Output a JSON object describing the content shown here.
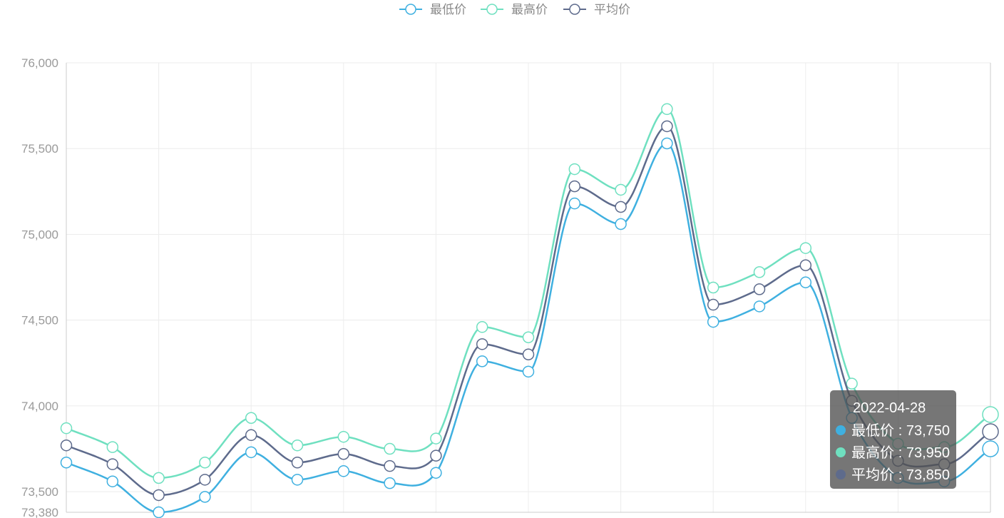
{
  "chart_data": {
    "type": "line",
    "smooth": true,
    "grid": true,
    "legend_position": "top-center",
    "y_ticks": [
      "76,000",
      "75,500",
      "75,000",
      "74,500",
      "74,000",
      "73,500",
      "73,380"
    ],
    "ylim": [
      73380,
      76000
    ],
    "x_count": 21,
    "series": [
      {
        "name": "最低价",
        "color": "#3fb0e0",
        "values": [
          73670,
          73560,
          73380,
          73470,
          73730,
          73570,
          73620,
          73550,
          73610,
          74260,
          74200,
          75180,
          75060,
          75530,
          74490,
          74580,
          74720,
          73930,
          73580,
          73560,
          73750
        ]
      },
      {
        "name": "最高价",
        "color": "#6fe0c0",
        "values": [
          73870,
          73760,
          73580,
          73670,
          73930,
          73770,
          73820,
          73750,
          73810,
          74460,
          74400,
          75380,
          75260,
          75730,
          74690,
          74780,
          74920,
          74130,
          73780,
          73760,
          73950
        ]
      },
      {
        "name": "平均价",
        "color": "#5e6b8c",
        "values": [
          73770,
          73660,
          73480,
          73570,
          73830,
          73670,
          73720,
          73650,
          73710,
          74360,
          74300,
          75280,
          75160,
          75630,
          74590,
          74680,
          74820,
          74030,
          73680,
          73660,
          73850
        ]
      }
    ],
    "tooltip": {
      "date": "2022-04-28",
      "index": 20,
      "rows": [
        {
          "label": "最低价",
          "value": "73,750",
          "color": "#3fb0e0"
        },
        {
          "label": "最高价",
          "value": "73,950",
          "color": "#6fe0c0"
        },
        {
          "label": "平均价",
          "value": "73,850",
          "color": "#5e6b8c"
        }
      ]
    }
  }
}
